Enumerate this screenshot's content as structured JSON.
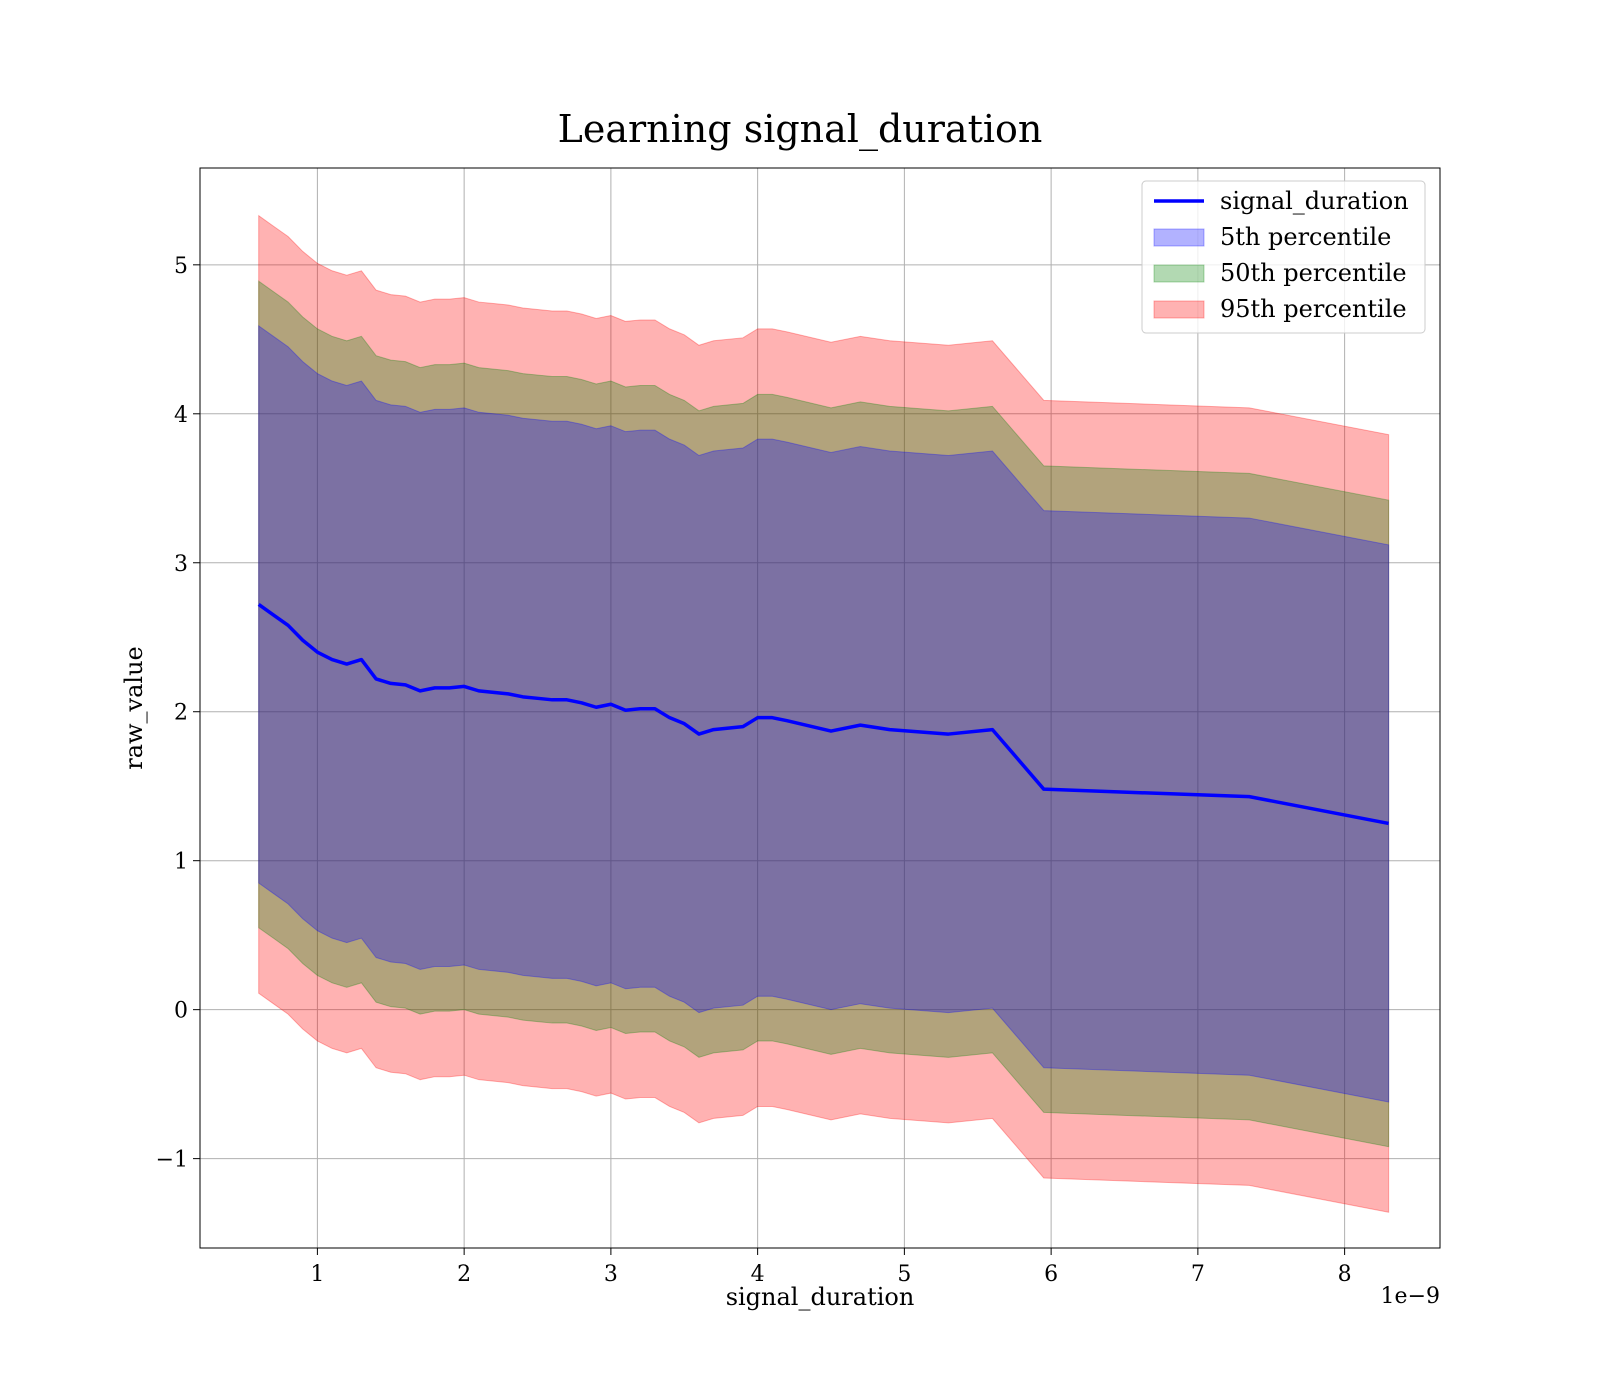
{
  "chart_data": {
    "type": "area",
    "title": "Learning signal_duration",
    "xlabel": "signal_duration",
    "ylabel": "raw_value",
    "x_offset_label": "1e−9",
    "xlim": [
      0.2,
      8.65
    ],
    "ylim": [
      -1.6,
      5.65
    ],
    "x_ticks": [
      1,
      2,
      3,
      4,
      5,
      6,
      7,
      8
    ],
    "x_tick_labels": [
      "1",
      "2",
      "3",
      "4",
      "5",
      "6",
      "7",
      "8"
    ],
    "y_ticks": [
      -1,
      0,
      1,
      2,
      3,
      4,
      5
    ],
    "y_tick_labels": [
      "−1",
      "0",
      "1",
      "2",
      "3",
      "4",
      "5"
    ],
    "grid": true,
    "legend_position": "top-right",
    "x": [
      0.6,
      0.7,
      0.8,
      0.9,
      1.0,
      1.1,
      1.2,
      1.3,
      1.4,
      1.5,
      1.6,
      1.7,
      1.8,
      1.9,
      2.0,
      2.1,
      2.2,
      2.3,
      2.4,
      2.5,
      2.6,
      2.7,
      2.8,
      2.9,
      3.0,
      3.1,
      3.2,
      3.3,
      3.4,
      3.5,
      3.6,
      3.7,
      3.9,
      4.0,
      4.1,
      4.2,
      4.5,
      4.7,
      4.9,
      5.3,
      5.6,
      5.95,
      7.35,
      8.3
    ],
    "series": [
      {
        "name": "signal_duration",
        "kind": "line",
        "color": "#0000ff",
        "values": [
          2.72,
          2.65,
          2.58,
          2.48,
          2.4,
          2.35,
          2.32,
          2.35,
          2.22,
          2.19,
          2.18,
          2.14,
          2.16,
          2.16,
          2.17,
          2.14,
          2.13,
          2.12,
          2.1,
          2.09,
          2.08,
          2.08,
          2.06,
          2.03,
          2.05,
          2.01,
          2.02,
          2.02,
          1.96,
          1.92,
          1.85,
          1.88,
          1.9,
          1.96,
          1.96,
          1.94,
          1.87,
          1.91,
          1.88,
          1.85,
          1.88,
          1.48,
          1.43,
          1.25
        ]
      },
      {
        "name": "5th percentile",
        "kind": "band",
        "color": "#0000ff",
        "offset": 1.87
      },
      {
        "name": "50th percentile",
        "kind": "band",
        "color": "#008000",
        "offset": 2.17
      },
      {
        "name": "95th percentile",
        "kind": "band",
        "color": "#ff0000",
        "offset": 2.61
      }
    ]
  }
}
